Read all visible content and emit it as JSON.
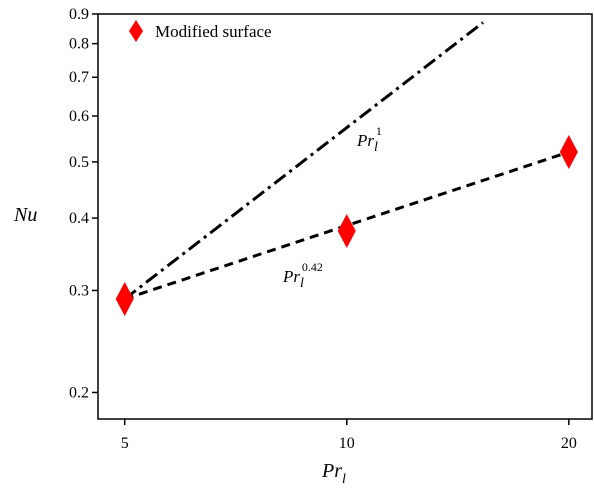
{
  "chart_data": {
    "type": "scatter",
    "x_scale": "log",
    "y_scale": "log",
    "xlim": [
      4.6,
      21.5
    ],
    "ylim": [
      0.18,
      0.9
    ],
    "x_ticks": [
      5,
      10,
      20
    ],
    "x_tick_labels": [
      "5",
      "10",
      "20"
    ],
    "y_ticks": [
      0.2,
      0.3,
      0.4,
      0.5,
      0.6,
      0.7,
      0.8,
      0.9
    ],
    "y_tick_labels": [
      "0.2",
      "0.3",
      "0.4",
      "0.5",
      "0.6",
      "0.7",
      "0.8",
      "0.9"
    ],
    "xlabel": {
      "main": "Pr",
      "sub": "l"
    },
    "ylabel": "Nu",
    "grid": false,
    "legend_position": "top-left",
    "series": [
      {
        "name": "Modified surface",
        "marker": "diamond",
        "color": "#ff0000",
        "x": [
          5,
          10,
          20
        ],
        "y": [
          0.29,
          0.38,
          0.52
        ]
      }
    ],
    "reference_lines": [
      {
        "style": "dash-dot",
        "exponent": 1,
        "x": [
          5,
          15.3
        ],
        "y": [
          0.29,
          0.87
        ],
        "label": {
          "main": "Pr",
          "sub": "l",
          "sup": "1"
        }
      },
      {
        "style": "dashed",
        "exponent": 0.42,
        "x": [
          5,
          20
        ],
        "y": [
          0.29,
          0.52
        ],
        "label": {
          "main": "Pr",
          "sub": "l",
          "sup": "0.42"
        }
      }
    ]
  }
}
